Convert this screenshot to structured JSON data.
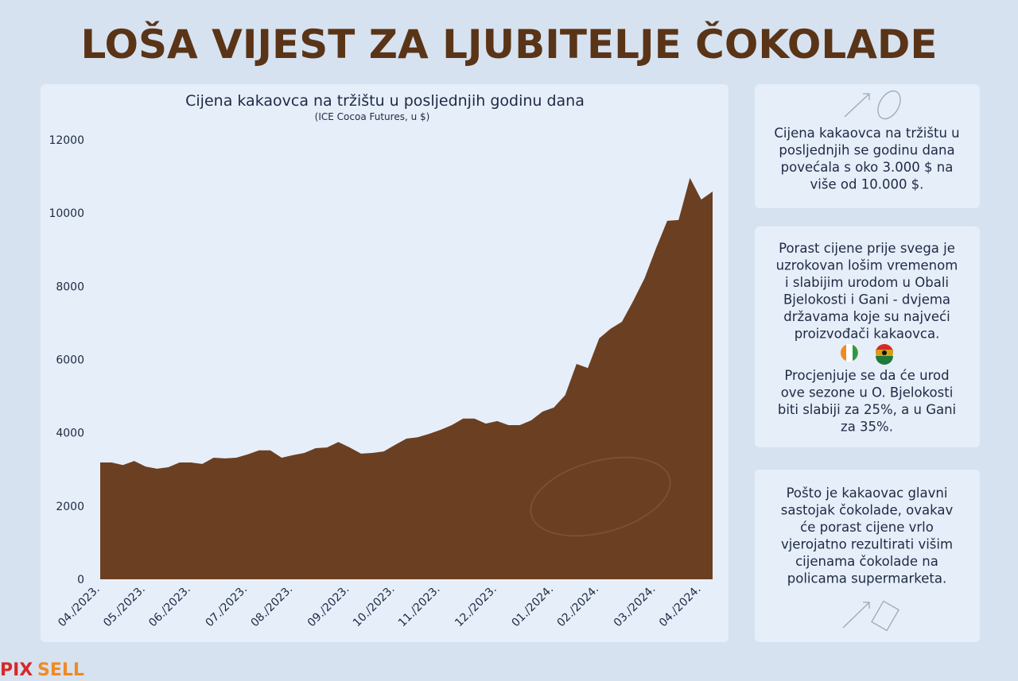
{
  "header": {
    "title": "LOŠA VIJEST ZA LJUBITELJE ČOKOLADE"
  },
  "chart_data": {
    "type": "area",
    "title": "Cijena kakaovca na tržištu u posljednjih godinu dana",
    "subtitle": "(ICE Cocoa Futures, u $)",
    "categories": [
      "04./2023.",
      null,
      null,
      null,
      "05./2023.",
      null,
      null,
      null,
      "06./2023.",
      null,
      null,
      null,
      null,
      "07./2023.",
      null,
      null,
      null,
      "08./2023.",
      null,
      null,
      null,
      null,
      "09./2023.",
      null,
      null,
      null,
      "10./2023.",
      null,
      null,
      null,
      "11./2023.",
      null,
      null,
      null,
      null,
      "12./2023.",
      null,
      null,
      null,
      null,
      "01./2024.",
      null,
      null,
      null,
      "02./2024.",
      null,
      null,
      null,
      null,
      "03./2024.",
      null,
      null,
      null,
      "04./2024.",
      null
    ],
    "values": [
      3190,
      3190,
      3120,
      3230,
      3080,
      3020,
      3060,
      3190,
      3190,
      3150,
      3320,
      3300,
      3320,
      3410,
      3520,
      3520,
      3320,
      3390,
      3450,
      3580,
      3600,
      3750,
      3600,
      3430,
      3450,
      3490,
      3670,
      3840,
      3880,
      3970,
      4080,
      4210,
      4390,
      4390,
      4250,
      4320,
      4210,
      4210,
      4340,
      4580,
      4690,
      5030,
      5880,
      5770,
      6580,
      6840,
      7030,
      7600,
      8220,
      9030,
      9790,
      9810,
      10960,
      10370,
      10590
    ],
    "color": "#6b3f21",
    "ylim": [
      0,
      12000
    ],
    "yticks": [
      0,
      2000,
      4000,
      6000,
      8000,
      10000,
      12000
    ],
    "grid": false
  },
  "panels": [
    {
      "lines": [
        "Cijena kakaovca na tržištu u",
        "posljednjih se godinu dana",
        "povećala s oko 3.000 $ na",
        "više od 10.000 $."
      ]
    },
    {
      "lines": [
        "Porast cijene prije svega je",
        "uzrokovan lošim vremenom",
        "i slabijim urodom u Obali",
        "Bjelokosti i Gani - dvjema",
        "državama koje su najveći",
        "proizvođači kakaovca."
      ],
      "lines2": [
        "Procjenjuje se da će urod",
        "ove sezone u O. Bjelokosti",
        "biti slabiji za 25%, a u Gani",
        "za 35%."
      ]
    },
    {
      "lines": [
        "Pošto je kakaovac glavni",
        "sastojak čokolade, ovakav",
        "će porast cijene vrlo",
        "vjerojatno rezultirati višim",
        "cijenama čokolade na",
        "policama supermarketa."
      ]
    }
  ],
  "logo": {
    "part1": "PIX",
    "part2": "SELL"
  }
}
